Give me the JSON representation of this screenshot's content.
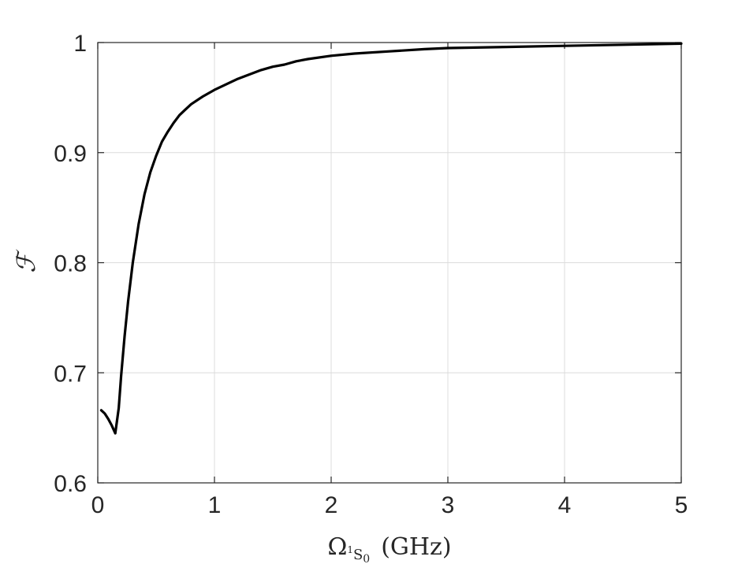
{
  "chart_data": {
    "type": "line",
    "title": "",
    "xlabel": {
      "main": "Ω",
      "sub_pre": "1",
      "sub": "S",
      "sub_post": "0",
      "unit": "(GHz)"
    },
    "ylabel": "ℱ",
    "xlim": [
      0,
      5
    ],
    "ylim": [
      0.6,
      1.0
    ],
    "xticks": [
      0,
      1,
      2,
      3,
      4,
      5
    ],
    "xtick_labels": [
      "0",
      "1",
      "2",
      "3",
      "4",
      "5"
    ],
    "yticks": [
      0.6,
      0.7,
      0.8,
      0.9,
      1.0
    ],
    "ytick_labels": [
      "0.6",
      "0.7",
      "0.8",
      "0.9",
      "1"
    ],
    "grid": true,
    "line_color": "#000000",
    "series": [
      {
        "x": [
          0.03,
          0.06,
          0.09,
          0.12,
          0.15,
          0.18,
          0.2,
          0.23,
          0.26,
          0.3,
          0.35,
          0.4,
          0.45,
          0.5,
          0.55,
          0.6,
          0.65,
          0.7,
          0.75,
          0.8,
          0.9,
          1.0,
          1.1,
          1.2,
          1.3,
          1.4,
          1.5,
          1.6,
          1.7,
          1.8,
          2.0,
          2.2,
          2.5,
          2.8,
          3.0,
          3.5,
          4.0,
          4.5,
          5.0
        ],
        "y": [
          0.666,
          0.663,
          0.658,
          0.652,
          0.645,
          0.668,
          0.697,
          0.733,
          0.765,
          0.8,
          0.835,
          0.862,
          0.882,
          0.897,
          0.91,
          0.919,
          0.927,
          0.934,
          0.939,
          0.944,
          0.951,
          0.957,
          0.962,
          0.967,
          0.971,
          0.975,
          0.978,
          0.98,
          0.983,
          0.985,
          0.988,
          0.99,
          0.992,
          0.994,
          0.995,
          0.996,
          0.997,
          0.998,
          0.999
        ]
      }
    ]
  }
}
